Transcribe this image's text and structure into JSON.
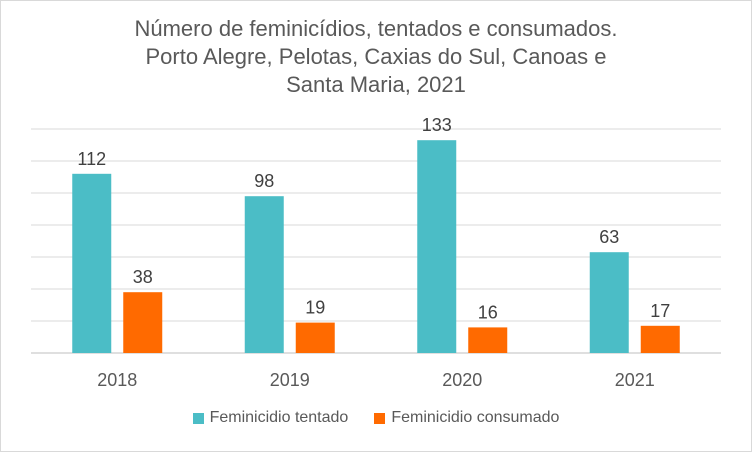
{
  "chart_data": {
    "type": "bar",
    "title_lines": [
      "Número de feminicídios, tentados e consumados.",
      "Porto Alegre, Pelotas, Caxias do Sul, Canoas e",
      "Santa Maria, 2021"
    ],
    "categories": [
      "2018",
      "2019",
      "2020",
      "2021"
    ],
    "series": [
      {
        "name": "Feminicidio tentado",
        "values": [
          112,
          98,
          133,
          63
        ],
        "color": "#4bbdc6"
      },
      {
        "name": "Feminicidio consumado",
        "values": [
          38,
          19,
          16,
          17
        ],
        "color": "#ff6a00"
      }
    ],
    "ylim": [
      0,
      140
    ],
    "grid": true,
    "legend_position": "bottom",
    "show_y_tick_labels": false
  }
}
